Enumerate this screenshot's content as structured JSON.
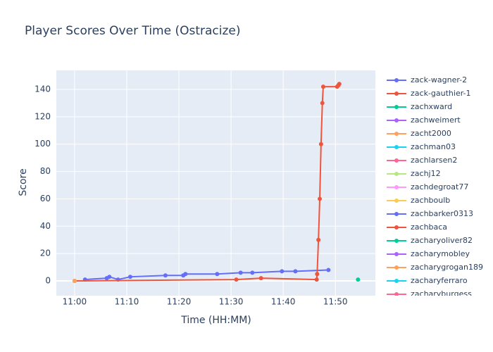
{
  "chart_data": {
    "type": "line",
    "title": "Player Scores Over Time (Ostracize)",
    "x_label": "Time (HH:MM)",
    "y_label": "Score",
    "xlim": [
      "10:56:30",
      "11:57:40"
    ],
    "xticks": [
      {
        "value": "11:00:00",
        "label": "11:00"
      },
      {
        "value": "11:10:00",
        "label": "11:10"
      },
      {
        "value": "11:20:00",
        "label": "11:20"
      },
      {
        "value": "11:30:00",
        "label": "11:30"
      },
      {
        "value": "11:40:00",
        "label": "11:40"
      },
      {
        "value": "11:50:00",
        "label": "11:50"
      }
    ],
    "ylim": [
      -10.8,
      153.9
    ],
    "yticks": [
      0,
      20,
      40,
      60,
      80,
      100,
      120,
      140
    ],
    "grid": true,
    "legend": "right",
    "series": [
      {
        "name": "zack-wagner-2",
        "color": "#636efa",
        "x": [
          "11:02:00",
          "11:06:10",
          "11:06:40",
          "11:08:20",
          "11:10:40",
          "11:17:25",
          "11:20:50",
          "11:21:15",
          "11:27:20",
          "11:31:50",
          "11:34:05",
          "11:39:45",
          "11:42:20",
          "11:48:40"
        ],
        "values": [
          1,
          2,
          3,
          1,
          3,
          4,
          4,
          5,
          5,
          6,
          6,
          7,
          7,
          8
        ]
      },
      {
        "name": "zack-gauthier-1",
        "color": "#EF553B",
        "x": [
          "11:00:00",
          "11:31:00",
          "11:35:45",
          "11:46:25",
          "11:46:30",
          "11:46:45",
          "11:47:00",
          "11:47:15",
          "11:47:30",
          "11:47:40",
          "11:50:20",
          "11:50:35",
          "11:50:45"
        ],
        "values": [
          0,
          1,
          2,
          1,
          5,
          30,
          60,
          100,
          130,
          142,
          142,
          143,
          144
        ]
      },
      {
        "name": "zachxward",
        "color": "#00cc96",
        "x": [
          "11:54:20"
        ],
        "values": [
          1
        ]
      },
      {
        "name": "zachweimert",
        "color": "#ab63fa",
        "x": [],
        "values": []
      },
      {
        "name": "zacht2000",
        "color": "#FFA15A",
        "x": [
          "11:00:00"
        ],
        "values": [
          0
        ]
      },
      {
        "name": "zachman03",
        "color": "#19d3f3",
        "x": [],
        "values": []
      },
      {
        "name": "zachlarsen2",
        "color": "#FF6692",
        "x": [],
        "values": []
      },
      {
        "name": "zachj12",
        "color": "#B6E880",
        "x": [],
        "values": []
      },
      {
        "name": "zachdegroat77",
        "color": "#FF97FF",
        "x": [],
        "values": []
      },
      {
        "name": "zachboulb",
        "color": "#FECB52",
        "x": [],
        "values": []
      },
      {
        "name": "zachbarker0313",
        "color": "#636efa",
        "x": [],
        "values": []
      },
      {
        "name": "zachbaca",
        "color": "#EF553B",
        "x": [],
        "values": []
      },
      {
        "name": "zacharyoliver82",
        "color": "#00cc96",
        "x": [],
        "values": []
      },
      {
        "name": "zacharymobley",
        "color": "#ab63fa",
        "x": [],
        "values": []
      },
      {
        "name": "zacharygrogan189",
        "color": "#FFA15A",
        "x": [],
        "values": []
      },
      {
        "name": "zacharyferraro",
        "color": "#19d3f3",
        "x": [],
        "values": []
      },
      {
        "name": "zacharyburgess",
        "color": "#FF6692",
        "x": [],
        "values": []
      }
    ]
  }
}
